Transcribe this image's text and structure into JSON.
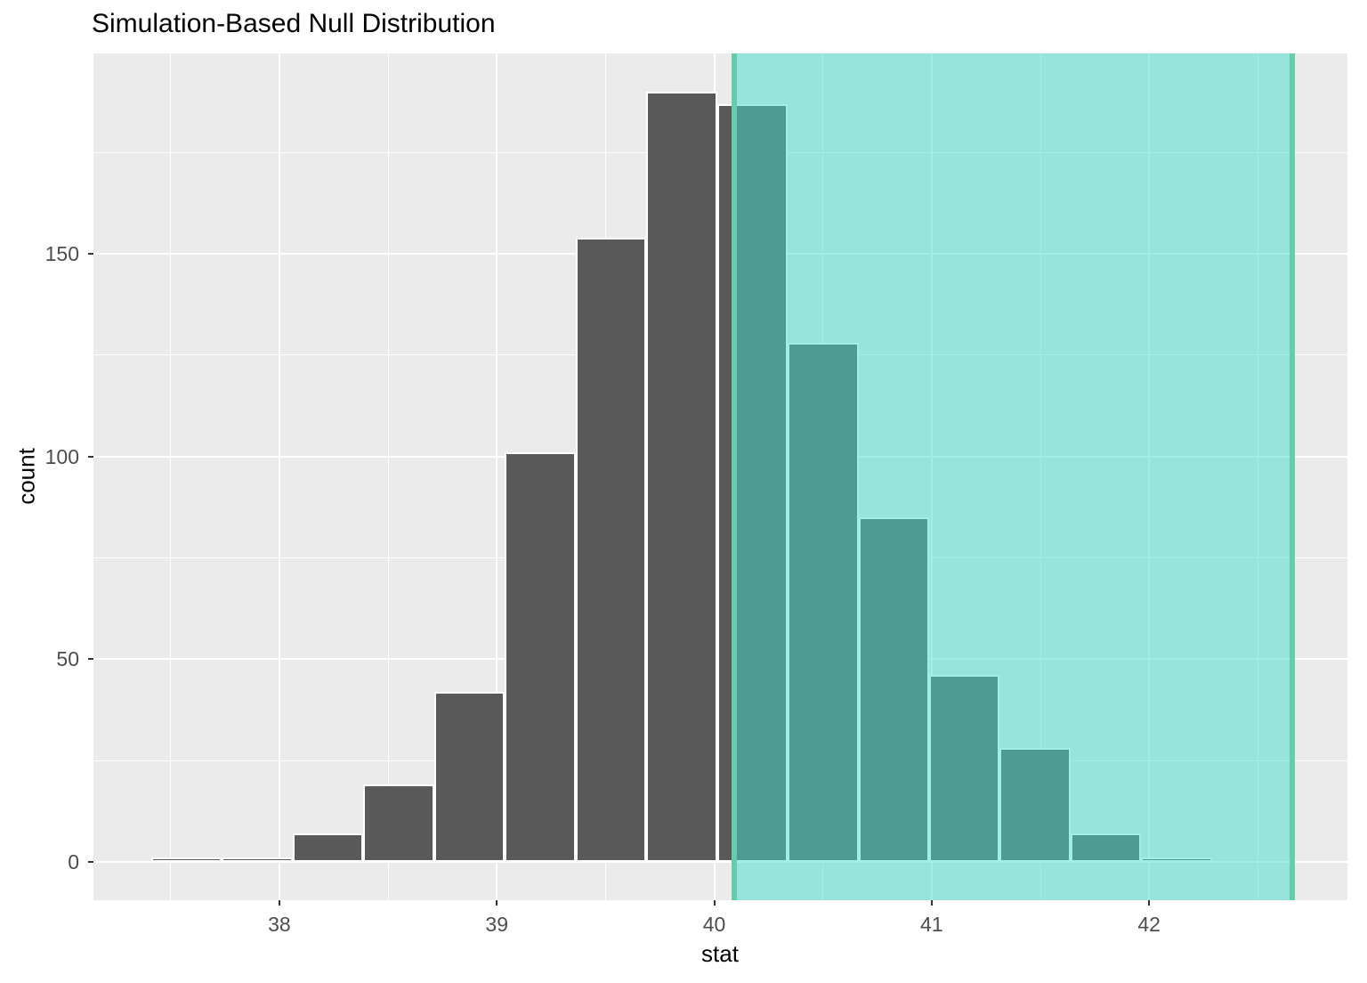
{
  "title": "Simulation-Based Null Distribution",
  "chart_data": {
    "type": "bar",
    "subtype": "histogram",
    "title": "Simulation-Based Null Distribution",
    "xlabel": "stat",
    "ylabel": "count",
    "xlim": [
      37.145,
      42.912
    ],
    "ylim": [
      -9.5,
      199.5
    ],
    "x_ticks": [
      38,
      39,
      40,
      41,
      42
    ],
    "x_minor": [
      37.5,
      38.5,
      39.5,
      40.5,
      41.5,
      42.5
    ],
    "y_ticks": [
      0,
      50,
      100,
      150
    ],
    "y_minor": [
      25,
      75,
      125,
      175
    ],
    "bin_start": 37.41,
    "bin_width": 0.3253,
    "counts": [
      1,
      1,
      7,
      19,
      42,
      101,
      154,
      190,
      187,
      128,
      85,
      46,
      28,
      7,
      1
    ],
    "shade_region": {
      "from": 40.09,
      "to": 42.66
    },
    "grid": true,
    "legend": "none",
    "colors": {
      "bar_fill": "#595959",
      "bar_stroke": "#FFFFFF",
      "panel_bg": "#EBEBEB",
      "grid_major": "#FFFFFF",
      "grid_minor": "#FFFFFF",
      "shade_fill": "rgba(64,224,208,0.5)",
      "shade_line": "#66CDAA",
      "tick_mark": "#333333",
      "tick_label": "#4D4D4D",
      "axis_title": "#000000",
      "title_color": "#000000"
    }
  }
}
